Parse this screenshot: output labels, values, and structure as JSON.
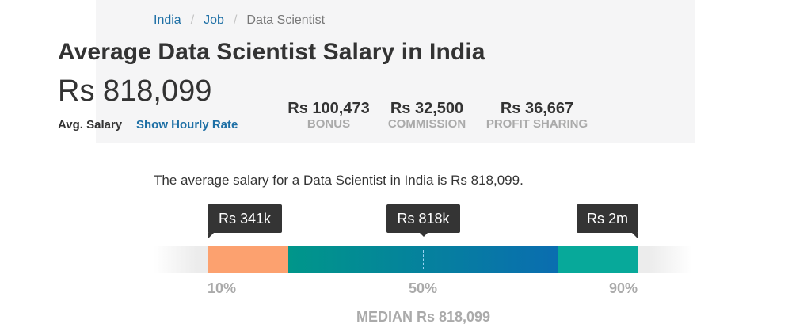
{
  "breadcrumb": {
    "items": [
      {
        "label": "India"
      },
      {
        "label": "Job"
      },
      {
        "label": "Data Scientist"
      }
    ],
    "separator": "/"
  },
  "header": {
    "title": "Average Data Scientist Salary in India",
    "avg_salary": "Rs 818,099",
    "avg_label": "Avg. Salary",
    "hourly_link": "Show Hourly Rate"
  },
  "stats": [
    {
      "value": "Rs 100,473",
      "label": "BONUS"
    },
    {
      "value": "Rs 32,500",
      "label": "COMMISSION"
    },
    {
      "value": "Rs 36,667",
      "label": "PROFIT SHARING"
    }
  ],
  "description": "The average salary for a Data Scientist in India is Rs 818,099.",
  "salary_range": {
    "tooltips": {
      "low": "Rs 341k",
      "median": "Rs 818k",
      "high": "Rs 2m"
    },
    "percentiles": {
      "p10": "10%",
      "p50": "50%",
      "p90": "90%"
    },
    "median_label": "MEDIAN Rs 818,099",
    "colors": {
      "low": "#fca16f",
      "mid_start": "#00968a",
      "mid_end": "#0a6db0",
      "high": "#07a99a"
    }
  }
}
